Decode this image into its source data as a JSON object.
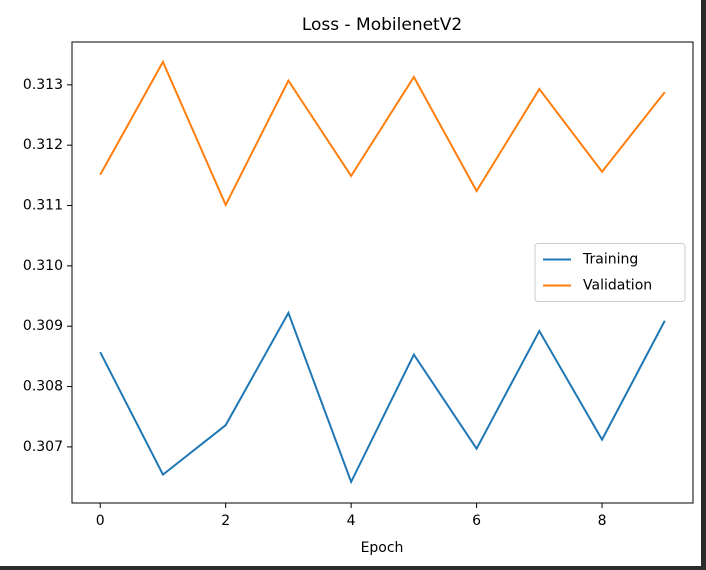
{
  "chart_data": {
    "type": "line",
    "title": "Loss - MobilenetV2",
    "xlabel": "Epoch",
    "x": [
      0,
      1,
      2,
      3,
      4,
      5,
      6,
      7,
      8,
      9
    ],
    "series": [
      {
        "name": "Training",
        "color": "#1f77b4",
        "values": [
          0.30857,
          0.30654,
          0.30736,
          0.30922,
          0.30642,
          0.30853,
          0.30697,
          0.30892,
          0.30712,
          0.30909
        ]
      },
      {
        "name": "Validation",
        "color": "#ff7f0e",
        "values": [
          0.31151,
          0.31338,
          0.31101,
          0.31307,
          0.31149,
          0.31313,
          0.31124,
          0.31293,
          0.31156,
          0.31288
        ]
      }
    ],
    "xlim": [
      -0.45,
      9.45
    ],
    "xticks": [
      0,
      2,
      4,
      6,
      8
    ],
    "ylim": [
      0.30607,
      0.31371
    ],
    "yticks": [
      0.307,
      0.308,
      0.309,
      {
        "value": 0.31,
        "label": "0.310"
      },
      0.311,
      0.312,
      0.313
    ],
    "grid": false,
    "legend": "center right"
  }
}
